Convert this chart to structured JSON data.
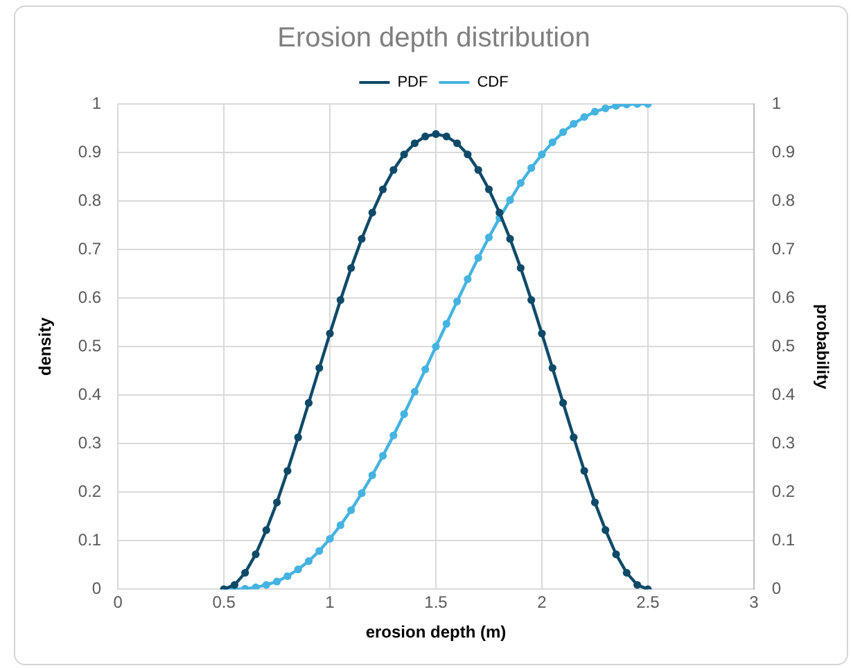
{
  "chart_data": {
    "type": "line",
    "title": "Erosion depth distribution",
    "xlabel": "erosion depth (m)",
    "ylabel": "density",
    "y2label": "probability",
    "x": [
      0.5,
      0.55,
      0.6,
      0.65,
      0.7,
      0.75,
      0.8,
      0.85,
      0.9,
      0.95,
      1,
      1.05,
      1.1,
      1.15,
      1.2,
      1.25,
      1.3,
      1.35,
      1.4,
      1.45,
      1.5,
      1.55,
      1.6,
      1.65,
      1.7,
      1.75,
      1.8,
      1.85,
      1.9,
      1.95,
      2,
      2.05,
      2.1,
      2.15,
      2.2,
      2.25,
      2.3,
      2.35,
      2.4,
      2.45,
      2.5
    ],
    "series": [
      {
        "name": "PDF",
        "color": "#0f4a68",
        "values": [
          0,
          0.009,
          0.034,
          0.072,
          0.122,
          0.179,
          0.244,
          0.313,
          0.384,
          0.456,
          0.527,
          0.596,
          0.662,
          0.722,
          0.776,
          0.824,
          0.864,
          0.896,
          0.919,
          0.933,
          0.938,
          0.933,
          0.919,
          0.896,
          0.864,
          0.824,
          0.776,
          0.722,
          0.662,
          0.596,
          0.527,
          0.456,
          0.384,
          0.313,
          0.244,
          0.179,
          0.122,
          0.072,
          0.034,
          0.009,
          0
        ]
      },
      {
        "name": "CDF",
        "color": "#45b3e0",
        "axis": "y2",
        "values": [
          0,
          0,
          0.001,
          0.004,
          0.009,
          0.016,
          0.027,
          0.041,
          0.058,
          0.079,
          0.104,
          0.132,
          0.163,
          0.198,
          0.235,
          0.275,
          0.317,
          0.361,
          0.407,
          0.453,
          0.5,
          0.547,
          0.593,
          0.639,
          0.683,
          0.725,
          0.765,
          0.802,
          0.837,
          0.868,
          0.896,
          0.921,
          0.942,
          0.959,
          0.973,
          0.984,
          0.991,
          0.996,
          0.999,
          1,
          1
        ]
      }
    ],
    "xlim": [
      0,
      3
    ],
    "xticks": [
      0,
      0.5,
      1,
      1.5,
      2,
      2.5,
      3
    ],
    "ylim": [
      0,
      1
    ],
    "yticks": [
      0,
      0.1,
      0.2,
      0.3,
      0.4,
      0.5,
      0.6,
      0.7,
      0.8,
      0.9,
      1
    ],
    "y2lim": [
      0,
      1
    ],
    "y2ticks": [
      0,
      0.1,
      0.2,
      0.3,
      0.4,
      0.5,
      0.6,
      0.7,
      0.8,
      0.9,
      1
    ],
    "grid": true,
    "legend": "top",
    "marker": "circle",
    "line_style": "solid"
  }
}
